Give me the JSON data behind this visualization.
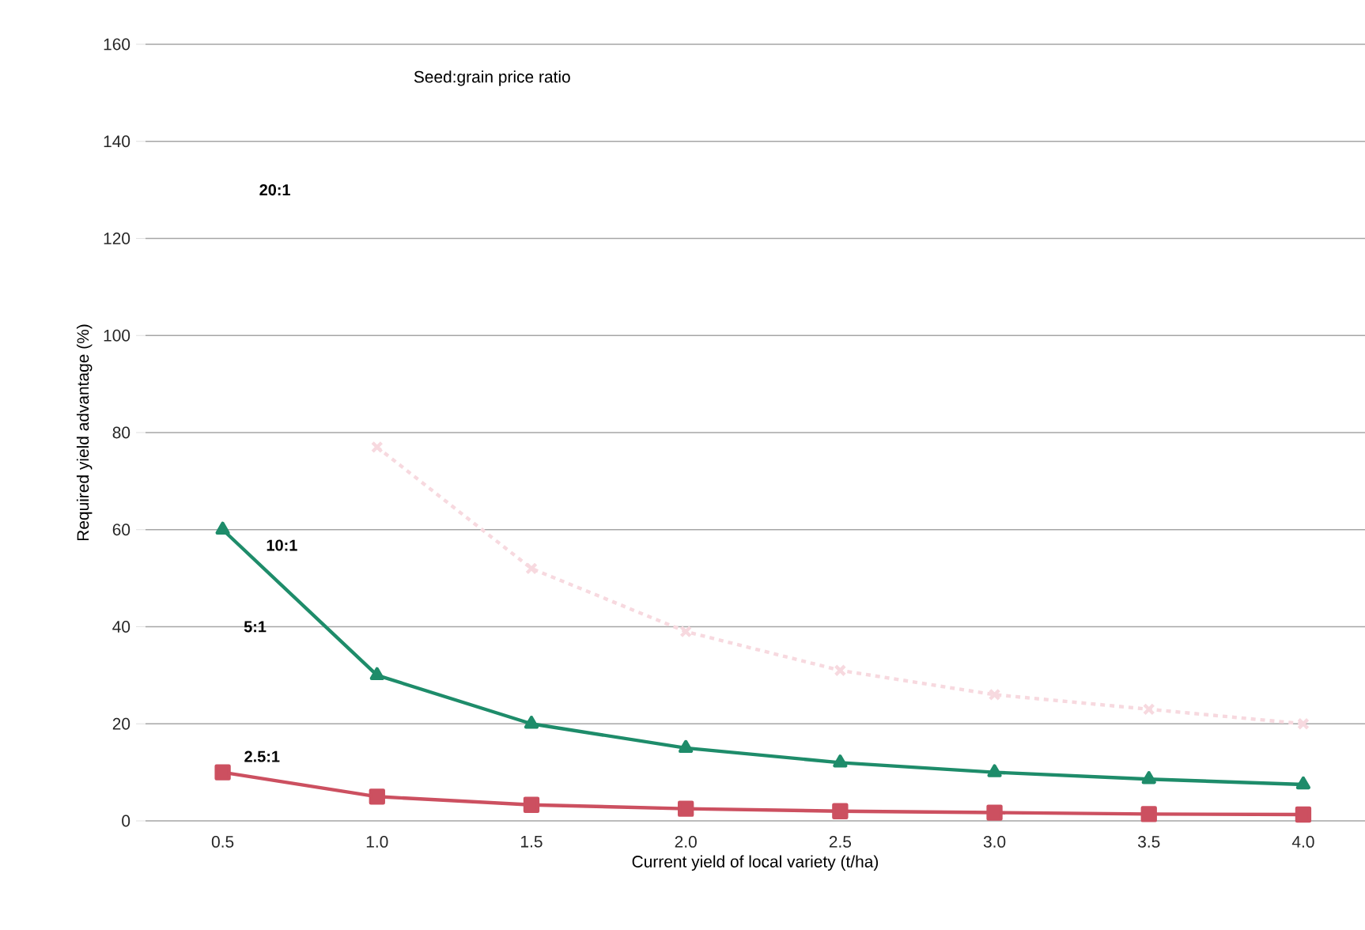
{
  "chart_data": {
    "type": "line",
    "title": "Seed:grain price ratio",
    "xlabel": "Current yield of local variety (t/ha)",
    "ylabel": "Required yield advantage (%)",
    "x": [
      0.5,
      1.0,
      1.5,
      2.0,
      2.5,
      3.0,
      3.5,
      4.0
    ],
    "series": [
      {
        "color": "#f7d9df",
        "values": [
          null,
          77,
          52,
          39,
          31,
          26,
          23,
          20
        ],
        "marker": "cross",
        "line_style": "dashed"
      },
      {
        "name": "10:1",
        "color": "#1e8c6a",
        "values": [
          60,
          30,
          20,
          15,
          12,
          10,
          8.6,
          7.5
        ],
        "marker": "triangle"
      },
      {
        "name": "2.5:1",
        "color": "#cc5060",
        "values": [
          10,
          5,
          3.3,
          2.5,
          2,
          1.7,
          1.4,
          1.3
        ],
        "marker": "square"
      }
    ],
    "annotations": [
      "20:1",
      "5:1"
    ],
    "xlim": [
      0.25,
      4.2
    ],
    "ylim": [
      0,
      160
    ],
    "xticks": [
      0.5,
      {
        "value": 1,
        "label": "1.0"
      },
      1.5,
      {
        "value": 2,
        "label": "2.0"
      },
      2.5,
      {
        "value": 3,
        "label": "3.0"
      },
      3.5,
      {
        "value": 4,
        "label": "4.0"
      }
    ],
    "yticks": [
      0,
      20,
      40,
      60,
      80,
      100,
      120,
      140,
      160
    ],
    "grid": "y"
  }
}
